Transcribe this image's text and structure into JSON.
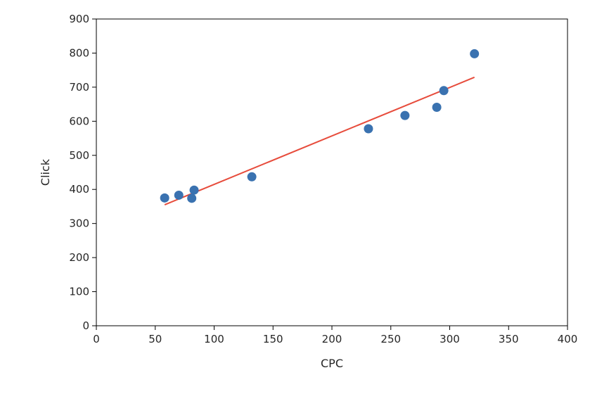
{
  "chart_data": {
    "type": "scatter",
    "title": "",
    "xlabel": "CPC",
    "ylabel": "Click",
    "xlim": [
      0,
      400
    ],
    "ylim": [
      0,
      900
    ],
    "x_ticks": [
      0,
      50,
      100,
      150,
      200,
      250,
      300,
      350,
      400
    ],
    "y_ticks": [
      0,
      100,
      200,
      300,
      400,
      500,
      600,
      700,
      800,
      900
    ],
    "grid": false,
    "legend": "none",
    "series": [
      {
        "type": "scatter",
        "color": "#3a72b0",
        "points": [
          {
            "x": 58,
            "y": 375
          },
          {
            "x": 70,
            "y": 383
          },
          {
            "x": 81,
            "y": 374
          },
          {
            "x": 83,
            "y": 398
          },
          {
            "x": 132,
            "y": 437
          },
          {
            "x": 231,
            "y": 578
          },
          {
            "x": 262,
            "y": 617
          },
          {
            "x": 289,
            "y": 641
          },
          {
            "x": 295,
            "y": 690
          },
          {
            "x": 321,
            "y": 798
          }
        ]
      },
      {
        "type": "line",
        "color": "#e74c3c",
        "points": [
          {
            "x": 58,
            "y": 355
          },
          {
            "x": 321,
            "y": 729
          }
        ]
      }
    ]
  }
}
